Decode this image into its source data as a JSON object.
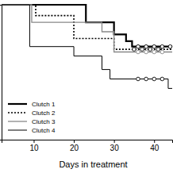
{
  "chart_data": {
    "type": "line",
    "x_label": "Days in treatment",
    "xlim": [
      2,
      44.5
    ],
    "xticks": [
      10,
      20,
      30,
      40
    ],
    "ylim": [
      0,
      1
    ],
    "yticks": [],
    "tick_labels": "x",
    "grid": false,
    "legend": "lower left",
    "series": [
      {
        "name": "Clutch 1",
        "color": "#000000",
        "line_style": "thick",
        "x": [
          2,
          23,
          30,
          33,
          34.5,
          44.5
        ],
        "values": [
          1,
          0.87,
          0.78,
          0.73,
          0.69,
          0.69
        ],
        "censored_x": [
          36,
          38,
          40,
          42,
          44
        ],
        "censored_values": [
          0.69,
          0.69,
          0.69,
          0.69,
          0.69
        ]
      },
      {
        "name": "Clutch 2",
        "color": "#000000",
        "line_style": "dotted",
        "x": [
          2,
          10.5,
          20,
          30,
          44.5
        ],
        "values": [
          1,
          0.92,
          0.75,
          0.67,
          0.67
        ],
        "censored_x": [
          35,
          37,
          39,
          41
        ],
        "censored_values": [
          0.67,
          0.67,
          0.67,
          0.67
        ]
      },
      {
        "name": "Clutch 3",
        "color": "#888888",
        "line_style": "solid",
        "x": [
          2,
          9.5,
          27,
          30,
          44.5
        ],
        "values": [
          1,
          0.87,
          0.8,
          0.65,
          0.65
        ],
        "censored_x": [
          36,
          38,
          40,
          42
        ],
        "censored_values": [
          0.65,
          0.65,
          0.65,
          0.65
        ]
      },
      {
        "name": "Clutch 4",
        "color": "#000000",
        "line_style": "thin",
        "x": [
          2,
          9,
          20,
          27,
          29,
          43.5,
          44.5
        ],
        "values": [
          1,
          0.69,
          0.62,
          0.52,
          0.45,
          0.38,
          0.38
        ],
        "censored_x": [
          36,
          38,
          40,
          42
        ],
        "censored_values": [
          0.45,
          0.45,
          0.45,
          0.45
        ]
      }
    ]
  }
}
